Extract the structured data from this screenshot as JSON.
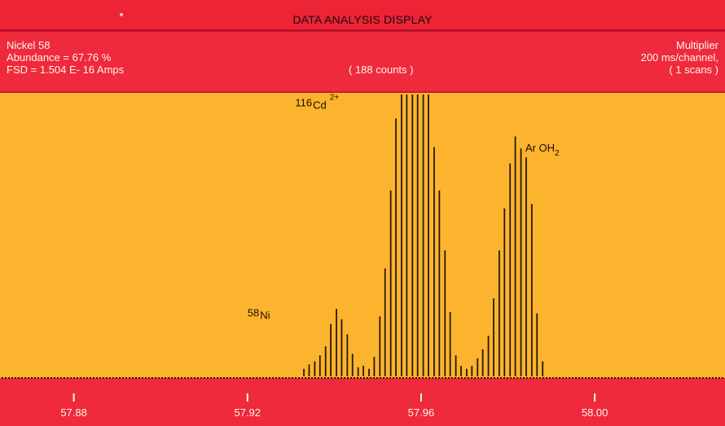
{
  "display": {
    "title": "DATA ANALYSIS DISPLAY",
    "left_info": [
      "Nickel 58",
      "Abundance = 67.76 %",
      "FSD = 1.504 E- 16 Amps"
    ],
    "counts_label": "( 188 counts )",
    "right_info": [
      "Multiplier",
      "200 ms/channel,",
      "( 1 scans )"
    ],
    "colors": {
      "frame": "#ee2a3c",
      "plot_bg": "#fcb42e",
      "bars": "#2a1808",
      "text_light": "#fff5e8"
    }
  },
  "chart_data": {
    "type": "bar",
    "xlabel": "",
    "ylabel": "",
    "xlim": [
      57.863,
      58.03
    ],
    "ylim": [
      0,
      188
    ],
    "grid": false,
    "x_ticks": [
      57.88,
      57.92,
      57.96,
      58.0
    ],
    "x_tick_labels": [
      "57.88",
      "57.92",
      "57.96",
      "58.00"
    ],
    "annotations": [
      {
        "base": "116",
        "element": "Cd",
        "sup": "2+",
        "x": 57.931,
        "y": 180
      },
      {
        "base": "",
        "element": "Ar OH",
        "sub": "2",
        "x": 57.984,
        "y": 150
      },
      {
        "base": "58",
        "element": "Ni",
        "x": 57.92,
        "y": 40
      }
    ],
    "x": [
      57.933,
      57.9342,
      57.9355,
      57.9367,
      57.938,
      57.9392,
      57.9405,
      57.9417,
      57.943,
      57.9442,
      57.9455,
      57.9467,
      57.948,
      57.9492,
      57.9505,
      57.9517,
      57.953,
      57.9542,
      57.9555,
      57.9567,
      57.958,
      57.9592,
      57.9605,
      57.9617,
      57.963,
      57.9642,
      57.9655,
      57.9667,
      57.968,
      57.9692,
      57.9705,
      57.9717,
      57.973,
      57.9742,
      57.9755,
      57.9767,
      57.978,
      57.9792,
      57.9805,
      57.9817,
      57.983,
      57.9842,
      57.9855,
      57.9867,
      57.988
    ],
    "values": [
      5,
      8,
      10,
      14,
      20,
      35,
      45,
      38,
      28,
      15,
      6,
      7,
      5,
      13,
      40,
      72,
      124,
      172,
      188,
      188,
      188,
      188,
      188,
      188,
      153,
      124,
      84,
      43,
      14,
      7,
      5,
      7,
      12,
      18,
      27,
      52,
      84,
      112,
      142,
      160,
      152,
      146,
      115,
      42,
      10
    ],
    "baseline_noise": "low"
  }
}
